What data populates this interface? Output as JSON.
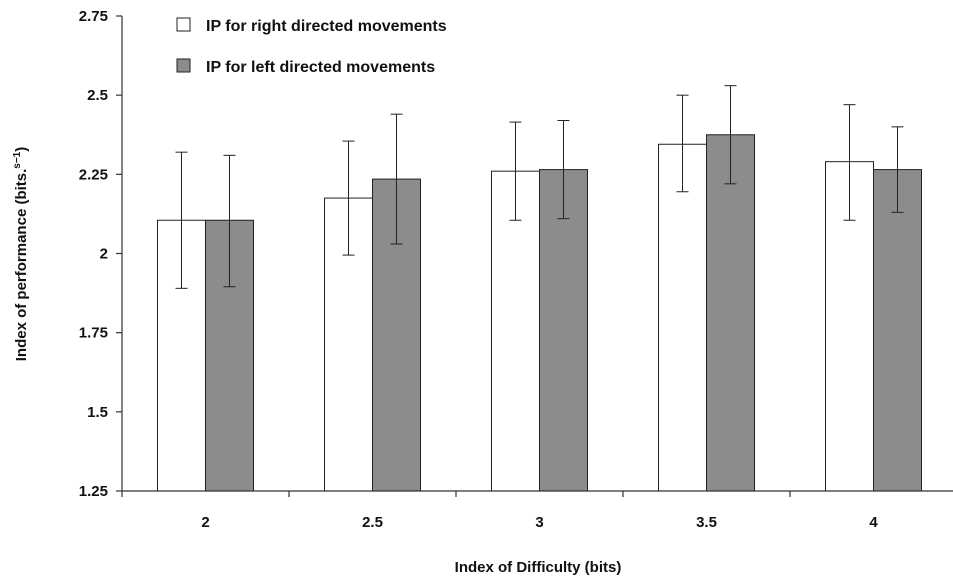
{
  "chart_data": {
    "type": "bar",
    "xlabel": "Index of Difficulty (bits)",
    "ylabel": "Index of performance (bits.",
    "ylabel_sup": "s−1",
    "ylabel_close": ")",
    "categories": [
      "2",
      "2.5",
      "3",
      "3.5",
      "4"
    ],
    "ylim": [
      1.25,
      2.75
    ],
    "yticks": [
      "1.25",
      "1.5",
      "1.75",
      "2",
      "2.25",
      "2.5",
      "2.75"
    ],
    "grid": false,
    "legend_position": "top-left",
    "series": [
      {
        "name": "IP for right directed movements",
        "color": "#ffffff",
        "values": [
          2.105,
          2.175,
          2.26,
          2.345,
          2.29
        ],
        "err_low": [
          1.89,
          1.995,
          2.105,
          2.195,
          2.105
        ],
        "err_high": [
          2.32,
          2.355,
          2.415,
          2.5,
          2.47
        ]
      },
      {
        "name": "IP for left directed movements",
        "color": "#8c8c8c",
        "values": [
          2.105,
          2.235,
          2.265,
          2.375,
          2.265
        ],
        "err_low": [
          1.895,
          2.03,
          2.11,
          2.22,
          2.13
        ],
        "err_high": [
          2.31,
          2.44,
          2.42,
          2.53,
          2.4
        ]
      }
    ]
  }
}
